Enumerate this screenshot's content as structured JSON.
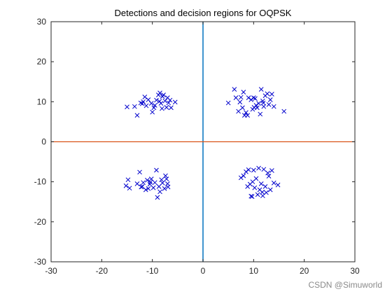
{
  "chart_data": {
    "type": "scatter",
    "title": "Detections and decision regions for OQPSK",
    "xlabel": "",
    "ylabel": "",
    "xlim": [
      -30,
      30
    ],
    "ylim": [
      -30,
      30
    ],
    "xticks": [
      -30,
      -20,
      -10,
      0,
      10,
      20,
      30
    ],
    "yticks": [
      -30,
      -20,
      -10,
      0,
      10,
      20,
      30
    ],
    "marker": "x",
    "marker_color": "#0000cc",
    "grid": false,
    "decision_lines": [
      {
        "orientation": "vertical",
        "at": 0,
        "color": "#0072bd"
      },
      {
        "orientation": "horizontal",
        "at": 0,
        "color": "#d95319"
      }
    ],
    "points": [
      [
        -15,
        8.7
      ],
      [
        -13.5,
        8.8
      ],
      [
        -13,
        6.6
      ],
      [
        -12,
        9.5
      ],
      [
        -11.8,
        10
      ],
      [
        -11.5,
        11.2
      ],
      [
        -11.2,
        9
      ],
      [
        -10.8,
        10.5
      ],
      [
        -10.2,
        9.6
      ],
      [
        -10,
        7.4
      ],
      [
        -9.5,
        9.1
      ],
      [
        -9.2,
        10.4
      ],
      [
        -8.8,
        11.7
      ],
      [
        -8.6,
        10.1
      ],
      [
        -8.5,
        12.2
      ],
      [
        -8.3,
        9.6
      ],
      [
        -8,
        11.3
      ],
      [
        -7.8,
        11.7
      ],
      [
        -7.5,
        10.2
      ],
      [
        -7.2,
        8.6
      ],
      [
        -7,
        11
      ],
      [
        -6.8,
        9.7
      ],
      [
        -6.5,
        10.4
      ],
      [
        -6.3,
        8.5
      ],
      [
        -5.5,
        9.9
      ],
      [
        -8.1,
        8.3
      ],
      [
        -9.7,
        8.5
      ],
      [
        -12.3,
        9.7
      ],
      [
        5,
        9.7
      ],
      [
        6.2,
        13.1
      ],
      [
        6.5,
        11
      ],
      [
        7,
        7.6
      ],
      [
        7.3,
        9.9
      ],
      [
        7.8,
        8.5
      ],
      [
        8,
        12.4
      ],
      [
        8.2,
        6.6
      ],
      [
        8.5,
        7.3
      ],
      [
        8.8,
        6.6
      ],
      [
        9,
        11
      ],
      [
        9.5,
        10.5
      ],
      [
        9.8,
        8.1
      ],
      [
        10,
        11
      ],
      [
        10.3,
        10.8
      ],
      [
        10.5,
        9.1
      ],
      [
        10.7,
        8.5
      ],
      [
        11,
        9.6
      ],
      [
        11.3,
        6.9
      ],
      [
        11.5,
        13.1
      ],
      [
        11.8,
        10.2
      ],
      [
        12,
        8.8
      ],
      [
        12.3,
        11.5
      ],
      [
        12.7,
        12
      ],
      [
        13,
        9.3
      ],
      [
        13.3,
        10.5
      ],
      [
        13.6,
        11.9
      ],
      [
        14,
        8.8
      ],
      [
        16,
        7.6
      ],
      [
        7.5,
        11.1
      ],
      [
        10.1,
        8.6
      ],
      [
        11.9,
        9.7
      ],
      [
        -15.2,
        -11
      ],
      [
        -14.8,
        -9.5
      ],
      [
        -14.5,
        -11.6
      ],
      [
        -13,
        -10.5
      ],
      [
        -12.5,
        -7.6
      ],
      [
        -12.2,
        -11.3
      ],
      [
        -11.8,
        -10.2
      ],
      [
        -11.3,
        -12
      ],
      [
        -11,
        -9.6
      ],
      [
        -10.8,
        -11.7
      ],
      [
        -10.5,
        -10.6
      ],
      [
        -10.2,
        -9.3
      ],
      [
        -9.8,
        -11.5
      ],
      [
        -9.5,
        -10.2
      ],
      [
        -9.2,
        -7.1
      ],
      [
        -9,
        -13.9
      ],
      [
        -8.7,
        -11.2
      ],
      [
        -8.5,
        -12.5
      ],
      [
        -8.2,
        -9.5
      ],
      [
        -8,
        -10.3
      ],
      [
        -7.6,
        -11.7
      ],
      [
        -7.4,
        -8.5
      ],
      [
        -7.2,
        -9.3
      ],
      [
        -7,
        -10.5
      ],
      [
        -6.9,
        -11.3
      ],
      [
        -10.4,
        -10.1
      ],
      [
        -12,
        -11.2
      ],
      [
        7.5,
        -9
      ],
      [
        8,
        -8.5
      ],
      [
        8.5,
        -7.5
      ],
      [
        8.8,
        -11.2
      ],
      [
        9,
        -7
      ],
      [
        9.3,
        -10.6
      ],
      [
        9.5,
        -13.6
      ],
      [
        9.8,
        -10
      ],
      [
        10,
        -7.1
      ],
      [
        10.2,
        -11.5
      ],
      [
        10.5,
        -9.2
      ],
      [
        10.8,
        -13.2
      ],
      [
        11,
        -6.6
      ],
      [
        11.2,
        -12
      ],
      [
        11.5,
        -10.5
      ],
      [
        11.8,
        -13.5
      ],
      [
        12,
        -6.9
      ],
      [
        12.3,
        -11.2
      ],
      [
        12.5,
        -12.7
      ],
      [
        12.8,
        -7.8
      ],
      [
        13,
        -8.6
      ],
      [
        13.3,
        -12
      ],
      [
        13.6,
        -7.2
      ],
      [
        14,
        -10.3
      ],
      [
        14.8,
        -10.8
      ],
      [
        9.7,
        -13.7
      ],
      [
        11.7,
        -12.6
      ]
    ]
  },
  "watermark": "CSDN @Simuworld"
}
